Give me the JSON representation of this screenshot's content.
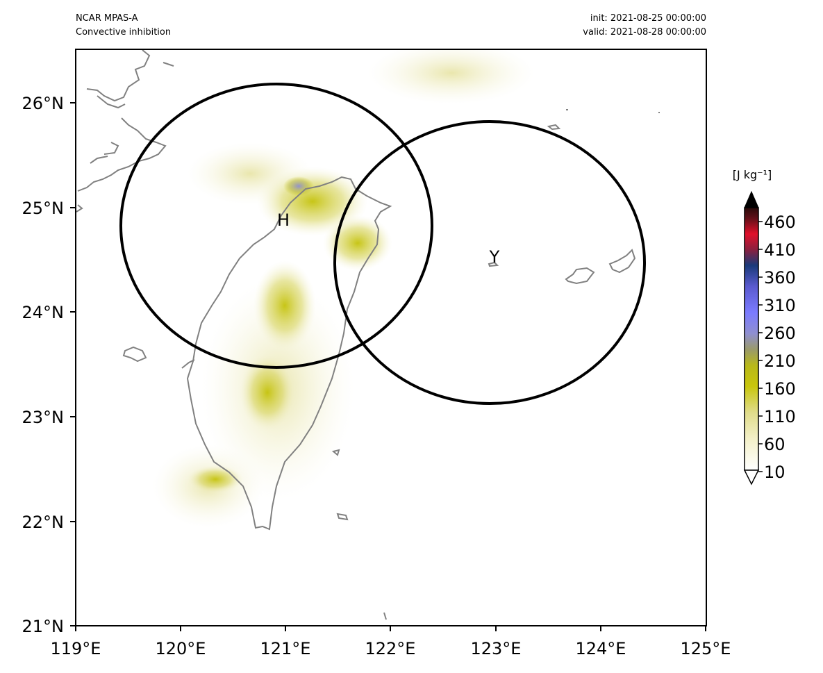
{
  "header": {
    "left_line1": "NCAR MPAS-A",
    "left_line2": "Convective inhibition",
    "right_line1": "init: 2021-08-25 00:00:00",
    "right_line2": "valid: 2021-08-28 00:00:00"
  },
  "map": {
    "lon_range": [
      119,
      125
    ],
    "lat_range": [
      21,
      26.5
    ],
    "x_ticks": [
      "119°E",
      "120°E",
      "121°E",
      "122°E",
      "123°E",
      "124°E",
      "125°E"
    ],
    "y_ticks": [
      "21°N",
      "22°N",
      "23°N",
      "24°N",
      "25°N",
      "26°N"
    ],
    "coastline_color": "#808080",
    "circles": [
      {
        "label": "H",
        "center_lon": 120.92,
        "center_lat": 24.84
      },
      {
        "label": "Y",
        "center_lon": 122.95,
        "center_lat": 24.47
      }
    ]
  },
  "colorbar": {
    "unit_label": "[J kg⁻¹]",
    "ticks": [
      "10",
      "60",
      "110",
      "160",
      "210",
      "260",
      "310",
      "360",
      "410",
      "460"
    ],
    "stops": [
      "#ffffff",
      "#f3f0c8",
      "#e0dc8a",
      "#c8c60c",
      "#b8b81a",
      "#9a9a6a",
      "#8f8fd0",
      "#7b7bff",
      "#5a5acf",
      "#1a3a7a",
      "#8a2040",
      "#e0102a",
      "#2a0a0a"
    ],
    "extend": "both"
  }
}
